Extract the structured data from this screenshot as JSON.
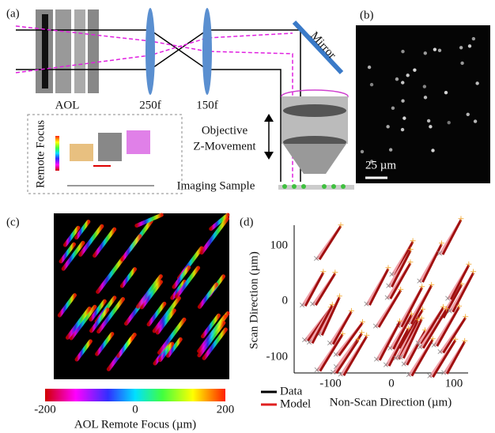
{
  "panel_a": {
    "label": "(a)",
    "aol": "AOL",
    "lens_1": "250f",
    "lens_2": "150f",
    "mirror": "Mirror",
    "remote_focus": "Remote Focus",
    "objective_lines": [
      "Objective",
      "Z-Movement"
    ],
    "sample": "Imaging Sample"
  },
  "panel_b": {
    "label": "(b)",
    "scale_bar": "25 µm"
  },
  "panel_c": {
    "label": "(c)",
    "colorbar_ticks": [
      "-200",
      "0",
      "200"
    ],
    "colorbar_label": "AOL Remote Focus (µm)"
  },
  "panel_d": {
    "label": "(d)",
    "y_label": "Scan Direction (µm)",
    "x_label": "Non-Scan Direction (µm)",
    "yticks": [
      "100",
      "0",
      "-100"
    ],
    "xticks": [
      "-100",
      "0",
      "100"
    ],
    "legend": [
      "Data",
      "Model"
    ]
  }
}
